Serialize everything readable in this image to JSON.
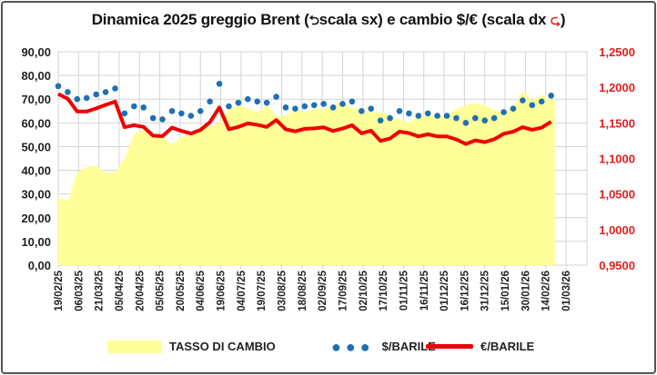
{
  "chart_data": {
    "type": "line",
    "title": "Dinamica 2025 greggio Brent (⮌ scala sx) e cambio $/€ (scala dx ⮎)",
    "title_parts": {
      "before": "Dinamica 2025 greggio Brent (",
      "left_scale": "scala sx) e cambio $/€ (scala dx ",
      "after": ")"
    },
    "y_left": {
      "min": 0,
      "max": 90,
      "ticks": [
        "0,00",
        "10,00",
        "20,00",
        "30,00",
        "40,00",
        "50,00",
        "60,00",
        "70,00",
        "80,00",
        "90,00"
      ]
    },
    "y_right": {
      "min": 0.95,
      "max": 1.25,
      "ticks": [
        "0,9500",
        "1,0000",
        "1,0500",
        "1,1000",
        "1,1500",
        "1,2000",
        "1,2500"
      ],
      "color": "#e02020"
    },
    "x_ticks": [
      "19/02/25",
      "06/03/25",
      "21/03/25",
      "05/04/25",
      "20/04/25",
      "05/05/25",
      "20/05/25",
      "04/06/25",
      "19/06/25",
      "04/07/25",
      "19/07/25",
      "03/08/25",
      "18/08/25",
      "02/09/25",
      "17/09/25",
      "02/10/25",
      "17/10/25",
      "01/11/25",
      "16/11/25",
      "01/12/25",
      "16/12/25",
      "31/12/25",
      "15/01/26",
      "30/01/26",
      "14/02/26",
      "01/03/26"
    ],
    "x_days_from_start_weekly_step": 7,
    "grid": true,
    "legend_position": "bottom",
    "series": [
      {
        "name": "TASSO DI CAMBIO",
        "type": "area",
        "axis": "right",
        "color": "#ffff99",
        "values": [
          1.045,
          1.04,
          1.08,
          1.088,
          1.09,
          1.08,
          1.08,
          1.1,
          1.135,
          1.14,
          1.135,
          1.13,
          1.12,
          1.13,
          1.135,
          1.14,
          1.145,
          1.15,
          1.17,
          1.175,
          1.17,
          1.165,
          1.175,
          1.16,
          1.16,
          1.17,
          1.165,
          1.17,
          1.17,
          1.175,
          1.18,
          1.17,
          1.17,
          1.165,
          1.165,
          1.16,
          1.155,
          1.15,
          1.16,
          1.16,
          1.16,
          1.16,
          1.17,
          1.175,
          1.178,
          1.175,
          1.168,
          1.165,
          1.172,
          1.195,
          1.182,
          1.19,
          1.182
        ]
      },
      {
        "name": "$/BARILE",
        "type": "scatter",
        "axis": "left",
        "color": "#1f6fb5",
        "values": [
          75.5,
          73,
          70,
          70.5,
          72,
          73,
          74.5,
          64,
          67,
          66.5,
          62,
          61.5,
          65,
          64,
          63,
          65,
          69,
          76.5,
          67,
          68.5,
          70,
          69,
          68.5,
          71,
          66.5,
          66,
          67,
          67.5,
          68,
          66.5,
          68,
          69,
          65,
          66,
          61,
          62,
          65,
          64,
          63,
          64,
          63,
          63,
          62,
          60,
          62,
          61,
          62,
          64.5,
          66,
          69.5,
          67.5,
          69,
          71.5
        ]
      },
      {
        "name": "€/BARILE",
        "type": "line",
        "axis": "left",
        "color": "#ee0000",
        "values": [
          72.2,
          70.2,
          64.8,
          64.8,
          66.1,
          67.6,
          69.0,
          58.2,
          59.0,
          58.3,
          54.6,
          54.4,
          58.0,
          56.6,
          55.5,
          57.0,
          60.3,
          66.5,
          57.3,
          58.3,
          59.8,
          59.2,
          58.3,
          61.2,
          57.3,
          56.4,
          57.5,
          57.7,
          58.1,
          56.6,
          57.6,
          59.0,
          55.6,
          56.7,
          52.4,
          53.4,
          56.3,
          55.7,
          54.3,
          55.2,
          54.3,
          54.3,
          53.0,
          51.1,
          52.6,
          51.9,
          53.1,
          55.4,
          56.3,
          58.2,
          57.1,
          58.0,
          60.5
        ]
      }
    ]
  }
}
